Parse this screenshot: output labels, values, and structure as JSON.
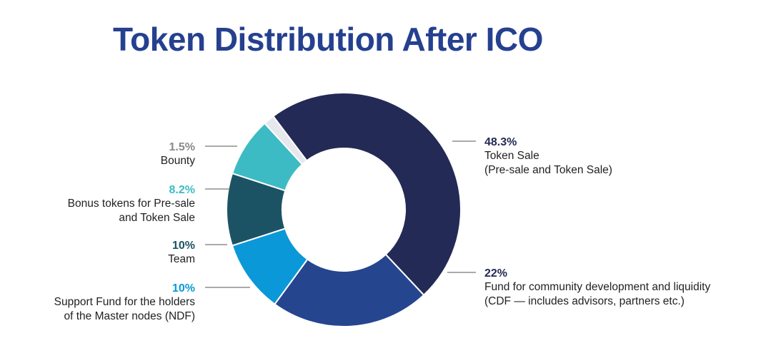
{
  "title": "Token Distribution After ICO",
  "chart_data": {
    "type": "pie",
    "variant": "donut",
    "title": "Token Distribution After ICO",
    "slices": [
      {
        "key": "token-sale",
        "value": 48.3,
        "value_label": "48.3%",
        "label_lines": [
          "Token Sale",
          "(Pre-sale and Token Sale)"
        ],
        "color": "#232a55"
      },
      {
        "key": "cdf",
        "value": 22,
        "value_label": "22%",
        "label_lines": [
          "Fund for community development and liquidity",
          "(CDF — includes advisors, partners etc.)"
        ],
        "color": "#26458f"
      },
      {
        "key": "ndf",
        "value": 10,
        "value_label": "10%",
        "label_lines": [
          "Support Fund for the holders",
          "of the Master nodes (NDF)"
        ],
        "color": "#0b98d8"
      },
      {
        "key": "team",
        "value": 10,
        "value_label": "10%",
        "label_lines": [
          "Team"
        ],
        "color": "#1b5364"
      },
      {
        "key": "bonus",
        "value": 8.2,
        "value_label": "8.2%",
        "label_lines": [
          "Bonus tokens for Pre-sale",
          "and Token Sale"
        ],
        "color": "#3dbbc4"
      },
      {
        "key": "bounty",
        "value": 1.5,
        "value_label": "1.5%",
        "label_lines": [
          "Bounty"
        ],
        "color": "#e6e8ee"
      }
    ]
  },
  "label_colors": {
    "token-sale": "#232a55",
    "cdf": "#232a55",
    "ndf": "#0b98d8",
    "team": "#1b5364",
    "bonus": "#3dbbc4",
    "bounty": "#8a8a8a"
  }
}
